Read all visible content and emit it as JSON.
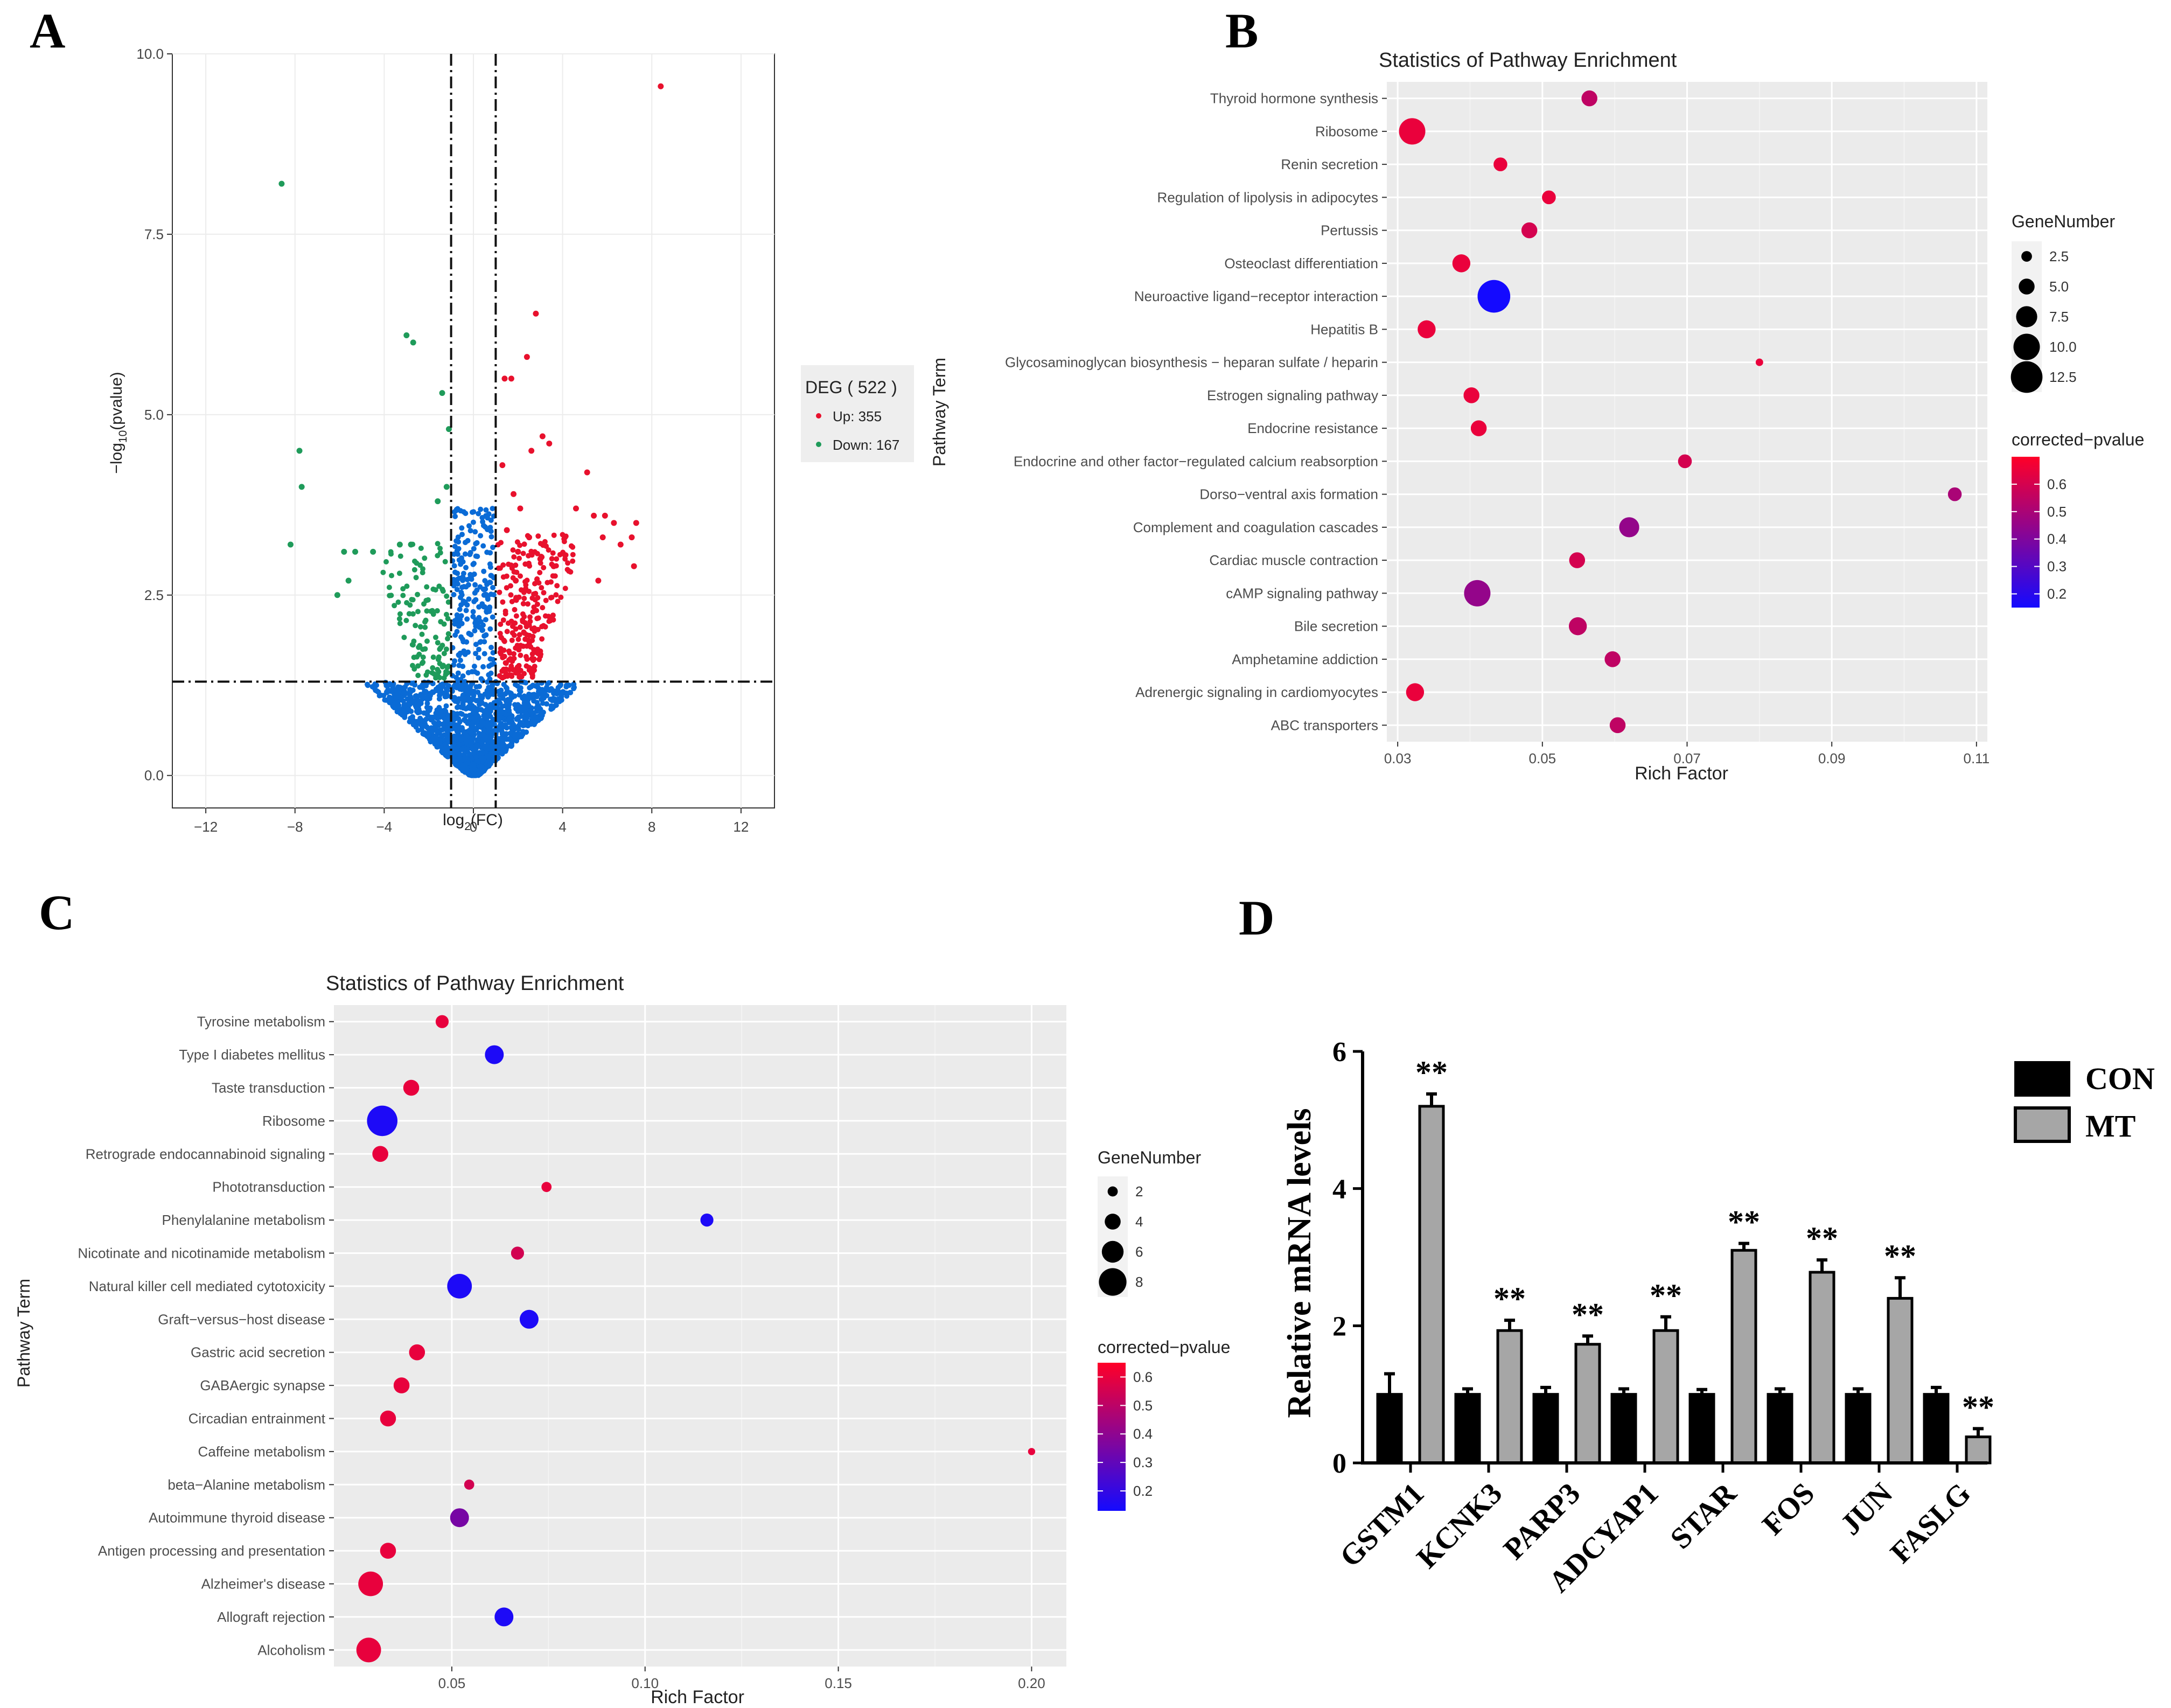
{
  "panels": {
    "A": {
      "label": "A"
    },
    "B": {
      "label": "B"
    },
    "C": {
      "label": "C"
    },
    "D": {
      "label": "D"
    }
  },
  "chart_data": [
    {
      "id": "A",
      "type": "scatter",
      "title": "",
      "xlabel_main": "log",
      "xlabel_sub": "2",
      "xlabel_rest": "(FC)",
      "ylabel_pre": "−log",
      "ylabel_sub": "10",
      "ylabel_rest": "(pvalue)",
      "xlim": [
        -13.5,
        13.5
      ],
      "ylim": [
        -0.45,
        10.0
      ],
      "xticks": [
        -12,
        -8,
        -4,
        0,
        4,
        8,
        12
      ],
      "xticklabels": [
        "−12",
        "−8",
        "−4",
        "0",
        "4",
        "8",
        "12"
      ],
      "yticks": [
        0,
        2.5,
        5,
        7.5,
        10
      ],
      "yticklabels": [
        "0.0",
        "2.5",
        "5.0",
        "7.5",
        "10.0"
      ],
      "fc_thresholds": [
        -1,
        1
      ],
      "p_threshold": 1.3,
      "legend_title": "DEG ( 522 )",
      "legend_entries": [
        {
          "label": "Up: 355",
          "color": "#e8112d"
        },
        {
          "label": "Down: 167",
          "color": "#1f9b5a"
        }
      ],
      "colors": {
        "up": "#e8112d",
        "down": "#1f9b5a",
        "ns": "#0a6bd6"
      },
      "series": [
        {
          "name": "Up",
          "points": [
            [
              8.4,
              9.55
            ],
            [
              2.8,
              6.4
            ],
            [
              2.4,
              5.8
            ],
            [
              1.4,
              5.5
            ],
            [
              1.7,
              5.5
            ],
            [
              3.1,
              4.7
            ],
            [
              2.6,
              4.5
            ],
            [
              3.4,
              4.6
            ],
            [
              5.1,
              4.2
            ],
            [
              1.3,
              4.3
            ],
            [
              4.6,
              3.7
            ],
            [
              5.4,
              3.6
            ],
            [
              5.9,
              3.6
            ],
            [
              6.3,
              3.5
            ],
            [
              7.3,
              3.5
            ],
            [
              7.1,
              3.3
            ],
            [
              6.6,
              3.2
            ],
            [
              5.8,
              3.3
            ],
            [
              7.2,
              2.9
            ],
            [
              1.8,
              3.9
            ],
            [
              2.1,
              3.7
            ],
            [
              1.5,
              3.4
            ],
            [
              2.0,
              3.1
            ],
            [
              2.5,
              3.3
            ],
            [
              3.0,
              3.0
            ],
            [
              1.9,
              2.7
            ],
            [
              4.1,
              3.3
            ],
            [
              3.6,
              2.9
            ],
            [
              5.6,
              2.7
            ]
          ]
        },
        {
          "name": "Down",
          "points": [
            [
              -8.6,
              8.2
            ],
            [
              -3.0,
              6.1
            ],
            [
              -2.7,
              6.0
            ],
            [
              -7.8,
              4.5
            ],
            [
              -7.7,
              4.0
            ],
            [
              -8.2,
              3.2
            ],
            [
              -1.1,
              4.8
            ],
            [
              -1.2,
              4.0
            ],
            [
              -1.4,
              5.3
            ],
            [
              -5.8,
              3.1
            ],
            [
              -5.3,
              3.1
            ],
            [
              -4.5,
              3.1
            ],
            [
              -3.3,
              3.2
            ],
            [
              -2.8,
              3.2
            ],
            [
              -1.6,
              3.8
            ],
            [
              -6.1,
              2.5
            ],
            [
              -5.6,
              2.7
            ]
          ]
        }
      ]
    },
    {
      "id": "B",
      "type": "scatter",
      "title": "Statistics of Pathway Enrichment",
      "xlabel": "Rich Factor",
      "ylabel": "Pathway Term",
      "xlim": [
        0.0285,
        0.1115
      ],
      "xticks": [
        0.03,
        0.05,
        0.07,
        0.09,
        0.11
      ],
      "xticklabels": [
        "0.03",
        "0.05",
        "0.07",
        "0.09",
        "0.11"
      ],
      "size_legend_title": "GeneNumber",
      "size_legend": [
        {
          "label": "2.5",
          "value": 2.5
        },
        {
          "label": "5.0",
          "value": 5.0
        },
        {
          "label": "7.5",
          "value": 7.5
        },
        {
          "label": "10.0",
          "value": 10.0
        },
        {
          "label": "12.5",
          "value": 12.5
        }
      ],
      "color_legend_title": "corrected−pvalue",
      "color_range": [
        0.15,
        0.7
      ],
      "color_ticks": [
        {
          "label": "0.6",
          "value": 0.6
        },
        {
          "label": "0.5",
          "value": 0.5
        },
        {
          "label": "0.4",
          "value": 0.4
        },
        {
          "label": "0.3",
          "value": 0.3
        },
        {
          "label": "0.2",
          "value": 0.2
        }
      ],
      "terms": [
        "Thyroid hormone synthesis",
        "Ribosome",
        "Renin secretion",
        "Regulation of lipolysis in adipocytes",
        "Pertussis",
        "Osteoclast differentiation",
        "Neuroactive ligand−receptor interaction",
        "Hepatitis B",
        "Glycosaminoglycan biosynthesis − heparan sulfate / heparin",
        "Estrogen signaling pathway",
        "Endocrine resistance",
        "Endocrine and other factor−regulated calcium reabsorption",
        "Dorso−ventral axis formation",
        "Complement and coagulation cascades",
        "Cardiac muscle contraction",
        "cAMP signaling pathway",
        "Bile secretion",
        "Amphetamine addiction",
        "Adrenergic signaling in cardiomyocytes",
        "ABC transporters"
      ],
      "rich_factor": [
        0.0565,
        0.032,
        0.0442,
        0.0509,
        0.0482,
        0.0388,
        0.0433,
        0.034,
        0.08,
        0.0402,
        0.0412,
        0.0697,
        0.107,
        0.062,
        0.0548,
        0.041,
        0.0549,
        0.0597,
        0.0324,
        0.0604
      ],
      "gene_number": [
        5,
        10,
        4,
        4,
        5,
        6,
        13,
        6,
        1,
        5,
        5,
        4,
        4,
        7,
        5,
        10,
        6,
        5,
        6,
        5
      ],
      "corrected_pvalue": [
        0.55,
        0.65,
        0.65,
        0.65,
        0.6,
        0.65,
        0.15,
        0.65,
        0.65,
        0.65,
        0.65,
        0.6,
        0.5,
        0.45,
        0.6,
        0.45,
        0.55,
        0.55,
        0.65,
        0.55
      ]
    },
    {
      "id": "C",
      "type": "scatter",
      "title": "Statistics of Pathway Enrichment",
      "xlabel": "Rich Factor",
      "ylabel": "Pathway Term",
      "xlim": [
        0.0195,
        0.209
      ],
      "xticks": [
        0.05,
        0.1,
        0.15,
        0.2
      ],
      "xticklabels": [
        "0.05",
        "0.10",
        "0.15",
        "0.20"
      ],
      "size_legend_title": "GeneNumber",
      "size_legend": [
        {
          "label": "2",
          "value": 2
        },
        {
          "label": "4",
          "value": 4
        },
        {
          "label": "6",
          "value": 6
        },
        {
          "label": "8",
          "value": 8
        }
      ],
      "color_legend_title": "corrected−pvalue",
      "color_range": [
        0.13,
        0.65
      ],
      "color_ticks": [
        {
          "label": "0.6",
          "value": 0.6
        },
        {
          "label": "0.5",
          "value": 0.5
        },
        {
          "label": "0.4",
          "value": 0.4
        },
        {
          "label": "0.3",
          "value": 0.3
        },
        {
          "label": "0.2",
          "value": 0.2
        }
      ],
      "terms": [
        "Tyrosine metabolism",
        "Type I diabetes mellitus",
        "Taste transduction",
        "Ribosome",
        "Retrograde endocannabinoid signaling",
        "Phototransduction",
        "Phenylalanine metabolism",
        "Nicotinate and nicotinamide metabolism",
        "Natural killer cell mediated cytotoxicity",
        "Graft−versus−host disease",
        "Gastric acid secretion",
        "GABAergic synapse",
        "Circadian entrainment",
        "Caffeine metabolism",
        "beta−Alanine metabolism",
        "Autoimmune thyroid disease",
        "Antigen processing and presentation",
        "Alzheimer's disease",
        "Allograft rejection",
        "Alcoholism"
      ],
      "rich_factor": [
        0.0475,
        0.061,
        0.0395,
        0.032,
        0.0315,
        0.0745,
        0.116,
        0.067,
        0.052,
        0.07,
        0.041,
        0.037,
        0.0335,
        0.2,
        0.0545,
        0.052,
        0.0335,
        0.029,
        0.0635,
        0.0285
      ],
      "gene_number": [
        3,
        5,
        4,
        9,
        4,
        2,
        3,
        3,
        7,
        5,
        4,
        4,
        4,
        1,
        2,
        5,
        4,
        7,
        5,
        7
      ],
      "corrected_pvalue": [
        0.6,
        0.15,
        0.6,
        0.15,
        0.6,
        0.6,
        0.15,
        0.55,
        0.15,
        0.15,
        0.6,
        0.6,
        0.6,
        0.6,
        0.55,
        0.35,
        0.6,
        0.6,
        0.15,
        0.6
      ]
    },
    {
      "id": "D",
      "type": "bar",
      "ylabel": "Relative mRNA levels",
      "ylim": [
        0,
        6
      ],
      "yticks": [
        0,
        2,
        4,
        6
      ],
      "yticklabels": [
        "0",
        "2",
        "4",
        "6"
      ],
      "categories": [
        "GSTM1",
        "KCNK3",
        "PARP3",
        "ADCYAP1",
        "STAR",
        "FOS",
        "JUN",
        "FASLG"
      ],
      "series": [
        {
          "name": "CON",
          "color": "#000000",
          "values": [
            1.0,
            1.0,
            1.0,
            1.0,
            1.0,
            1.0,
            1.0,
            1.0
          ],
          "errors": [
            0.3,
            0.08,
            0.1,
            0.08,
            0.07,
            0.08,
            0.08,
            0.1
          ]
        },
        {
          "name": "MT",
          "color": "#a6a6a6",
          "values": [
            5.2,
            1.93,
            1.73,
            1.93,
            3.1,
            2.78,
            2.4,
            0.38
          ],
          "errors": [
            0.18,
            0.15,
            0.12,
            0.2,
            0.1,
            0.18,
            0.3,
            0.12
          ]
        }
      ],
      "significance": [
        "**",
        "**",
        "**",
        "**",
        "**",
        "**",
        "**",
        "**"
      ],
      "legend_entries": [
        {
          "label": "CON"
        },
        {
          "label": "MT"
        }
      ]
    }
  ]
}
